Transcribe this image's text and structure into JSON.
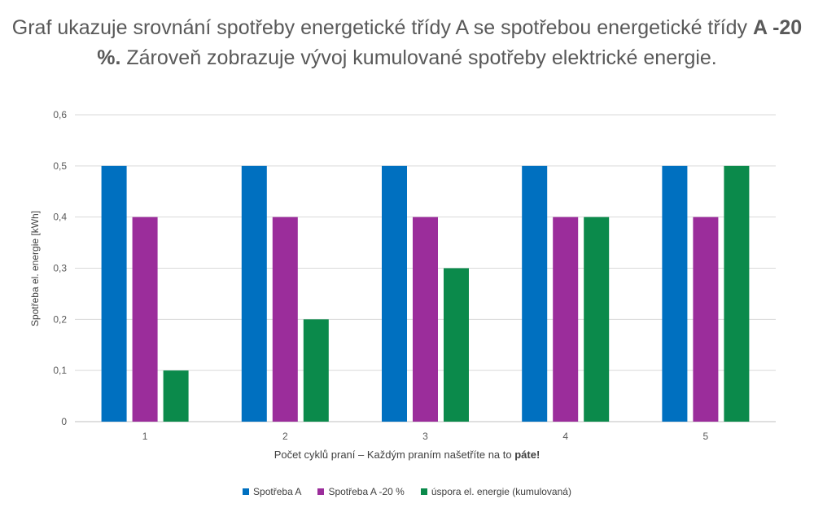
{
  "title": {
    "part1": "Graf ukazuje srovnání spotřeby energetické třídy A se spotřebou energetické třídy ",
    "bold": "A -20 %.",
    "part2": " Zároveň zobrazuje vývoj kumulované spotřeby elektrické energie."
  },
  "chart_data": {
    "type": "bar",
    "categories": [
      "1",
      "2",
      "3",
      "4",
      "5"
    ],
    "series": [
      {
        "name": "Spotřeba A",
        "color": "#0070C0",
        "values": [
          0.5,
          0.5,
          0.5,
          0.5,
          0.5
        ]
      },
      {
        "name": "Spotřeba A -20 %",
        "color": "#9B2D9B",
        "values": [
          0.4,
          0.4,
          0.4,
          0.4,
          0.4
        ]
      },
      {
        "name": "úspora el. energie (kumulovaná)",
        "color": "#0B8A4B",
        "values": [
          0.1,
          0.2,
          0.3,
          0.4,
          0.5
        ]
      }
    ],
    "ylim": [
      0,
      0.6
    ],
    "yticks": [
      "0",
      "0,1",
      "0,2",
      "0,3",
      "0,4",
      "0,5",
      "0,6"
    ],
    "xlabel_text": "Počet cyklů praní – Každým praním našetříte na to ",
    "xlabel_bold": "páte!",
    "ylabel": "Spotřeba el. energie [kWh]",
    "grid": true,
    "legend": "bottom"
  }
}
